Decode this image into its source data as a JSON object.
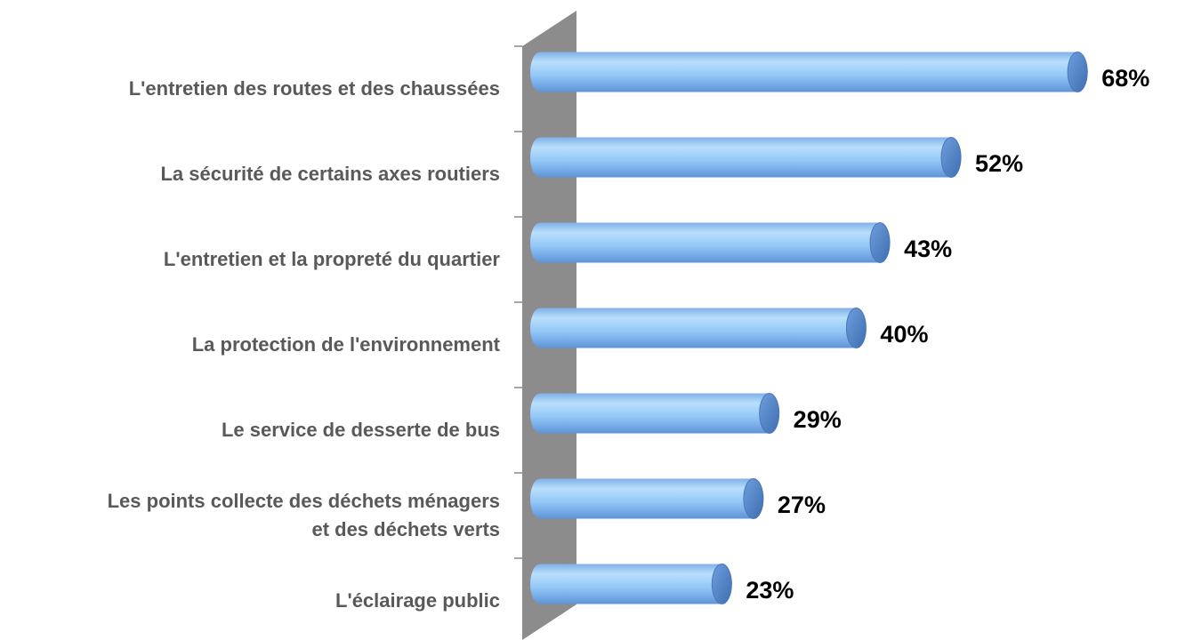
{
  "chart_data": {
    "type": "bar",
    "orientation": "horizontal",
    "categories": [
      "L'entretien des routes et des chaussées",
      "La sécurité de certains axes routiers",
      "L'entretien et la propreté du quartier",
      "La protection de l'environnement",
      "Le service de desserte de bus",
      "Les points collecte des déchets ménagers\net des déchets verts",
      "L'éclairage public"
    ],
    "values": [
      68,
      52,
      43,
      40,
      29,
      27,
      23
    ],
    "value_labels": [
      "68%",
      "52%",
      "43%",
      "40%",
      "29%",
      "27%",
      "23%"
    ],
    "color": "#8cc3f5",
    "xlim": [
      0,
      70
    ]
  }
}
